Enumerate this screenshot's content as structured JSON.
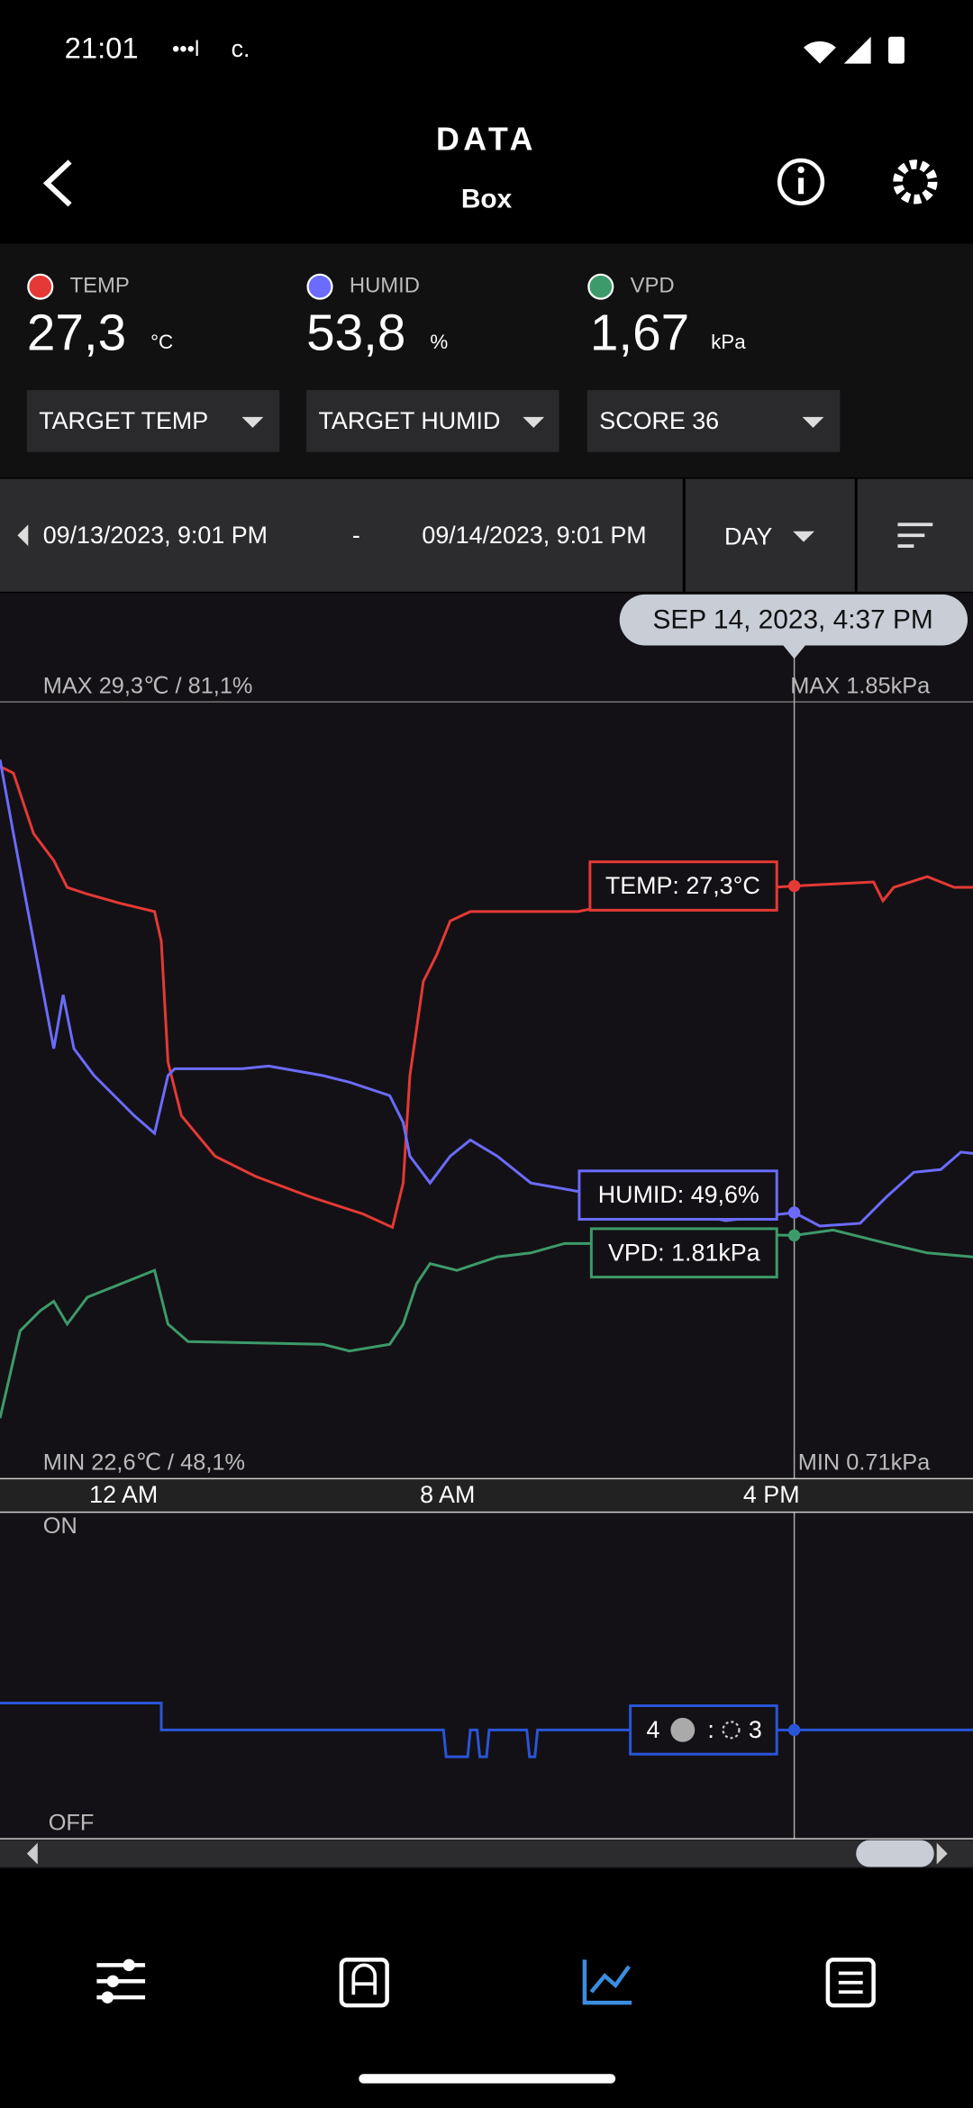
{
  "status": {
    "time": "21:01",
    "carrier": "c."
  },
  "header": {
    "title": "DATA",
    "subtitle": "Box"
  },
  "readings": [
    {
      "label": "TEMP",
      "value": "27,3",
      "unit": "°C"
    },
    {
      "label": "HUMID",
      "value": "53,8",
      "unit": "%"
    },
    {
      "label": "VPD",
      "value": "1,67",
      "unit": "kPa"
    }
  ],
  "dropdowns": [
    "TARGET TEMP",
    "TARGET HUMID",
    "SCORE 36"
  ],
  "range": {
    "start": "09/13/2023, 9:01 PM",
    "separator": "-",
    "end": "09/14/2023, 9:01 PM",
    "period": "DAY"
  },
  "chart": {
    "tooltip": "SEP 14, 2023, 4:37 PM",
    "max_left": "MAX 29,3℃ / 81,1%",
    "max_right": "MAX 1.85kPa",
    "min_left": "MIN 22,6℃ / 48,1%",
    "min_right": "MIN 0.71kPa",
    "temp_label": "TEMP: 27,3°C",
    "humid_label": "HUMID: 49,6%",
    "vpd_label": "VPD: 1.81kPa",
    "time_labels": [
      "12 AM",
      "8 AM",
      "4 PM"
    ]
  },
  "device": {
    "on": "ON",
    "off": "OFF",
    "left": "4",
    "separator": ":",
    "right": "3"
  }
}
